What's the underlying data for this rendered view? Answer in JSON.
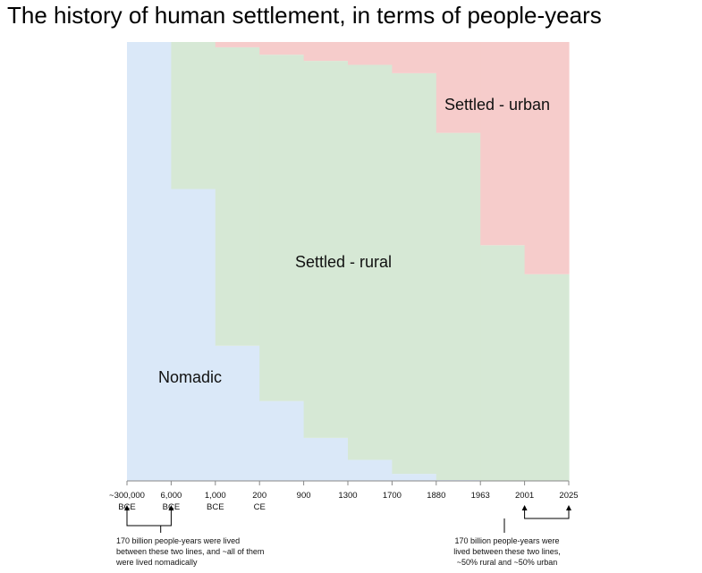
{
  "title": "The history of human settlement, in terms of people-years",
  "chart_data": {
    "type": "area",
    "title": "The history of human settlement, in terms of people-years",
    "stacking": "100% stacked (share of people-years in each era)",
    "eras": [
      {
        "line1": "~300,000",
        "line2": "BCE"
      },
      {
        "line1": "6,000",
        "line2": "BCE"
      },
      {
        "line1": "1,000",
        "line2": "BCE"
      },
      {
        "line1": "200",
        "line2": "CE"
      },
      {
        "line1": "900",
        "line2": ""
      },
      {
        "line1": "1300",
        "line2": ""
      },
      {
        "line1": "1700",
        "line2": ""
      },
      {
        "line1": "1880",
        "line2": ""
      },
      {
        "line1": "1963",
        "line2": ""
      },
      {
        "line1": "2001",
        "line2": ""
      },
      {
        "line1": "2025",
        "line2": ""
      }
    ],
    "series": [
      {
        "name": "Nomadic",
        "color": "#dae8f8",
        "values": [
          100,
          66.5,
          30.8,
          18.2,
          9.8,
          4.8,
          1.6,
          0.2,
          0,
          0
        ]
      },
      {
        "name": "Settled - rural",
        "color": "#d6e8d5",
        "values": [
          0,
          33.5,
          68.0,
          78.9,
          85.9,
          90.0,
          91.3,
          79.1,
          53.7,
          47.1
        ]
      },
      {
        "name": "Settled - urban",
        "color": "#f6cccb",
        "values": [
          0,
          0,
          1.2,
          2.9,
          4.3,
          5.2,
          7.1,
          20.7,
          46.3,
          52.9
        ]
      }
    ],
    "annotations": [
      {
        "id": "left",
        "text": [
          "170 billion people-years were lived",
          "between these two lines, and ~all of them",
          "were lived nomadically"
        ],
        "from_era": 0,
        "to_era": 1
      },
      {
        "id": "right",
        "text": [
          "170 billion people-years were",
          "lived between these two lines,",
          "~50% rural and ~50% urban"
        ],
        "from_era": 9,
        "to_era": 10
      }
    ],
    "xlabel": "",
    "ylabel": "",
    "ylim": [
      0,
      100
    ],
    "grid": false,
    "legend": "inline labels"
  }
}
